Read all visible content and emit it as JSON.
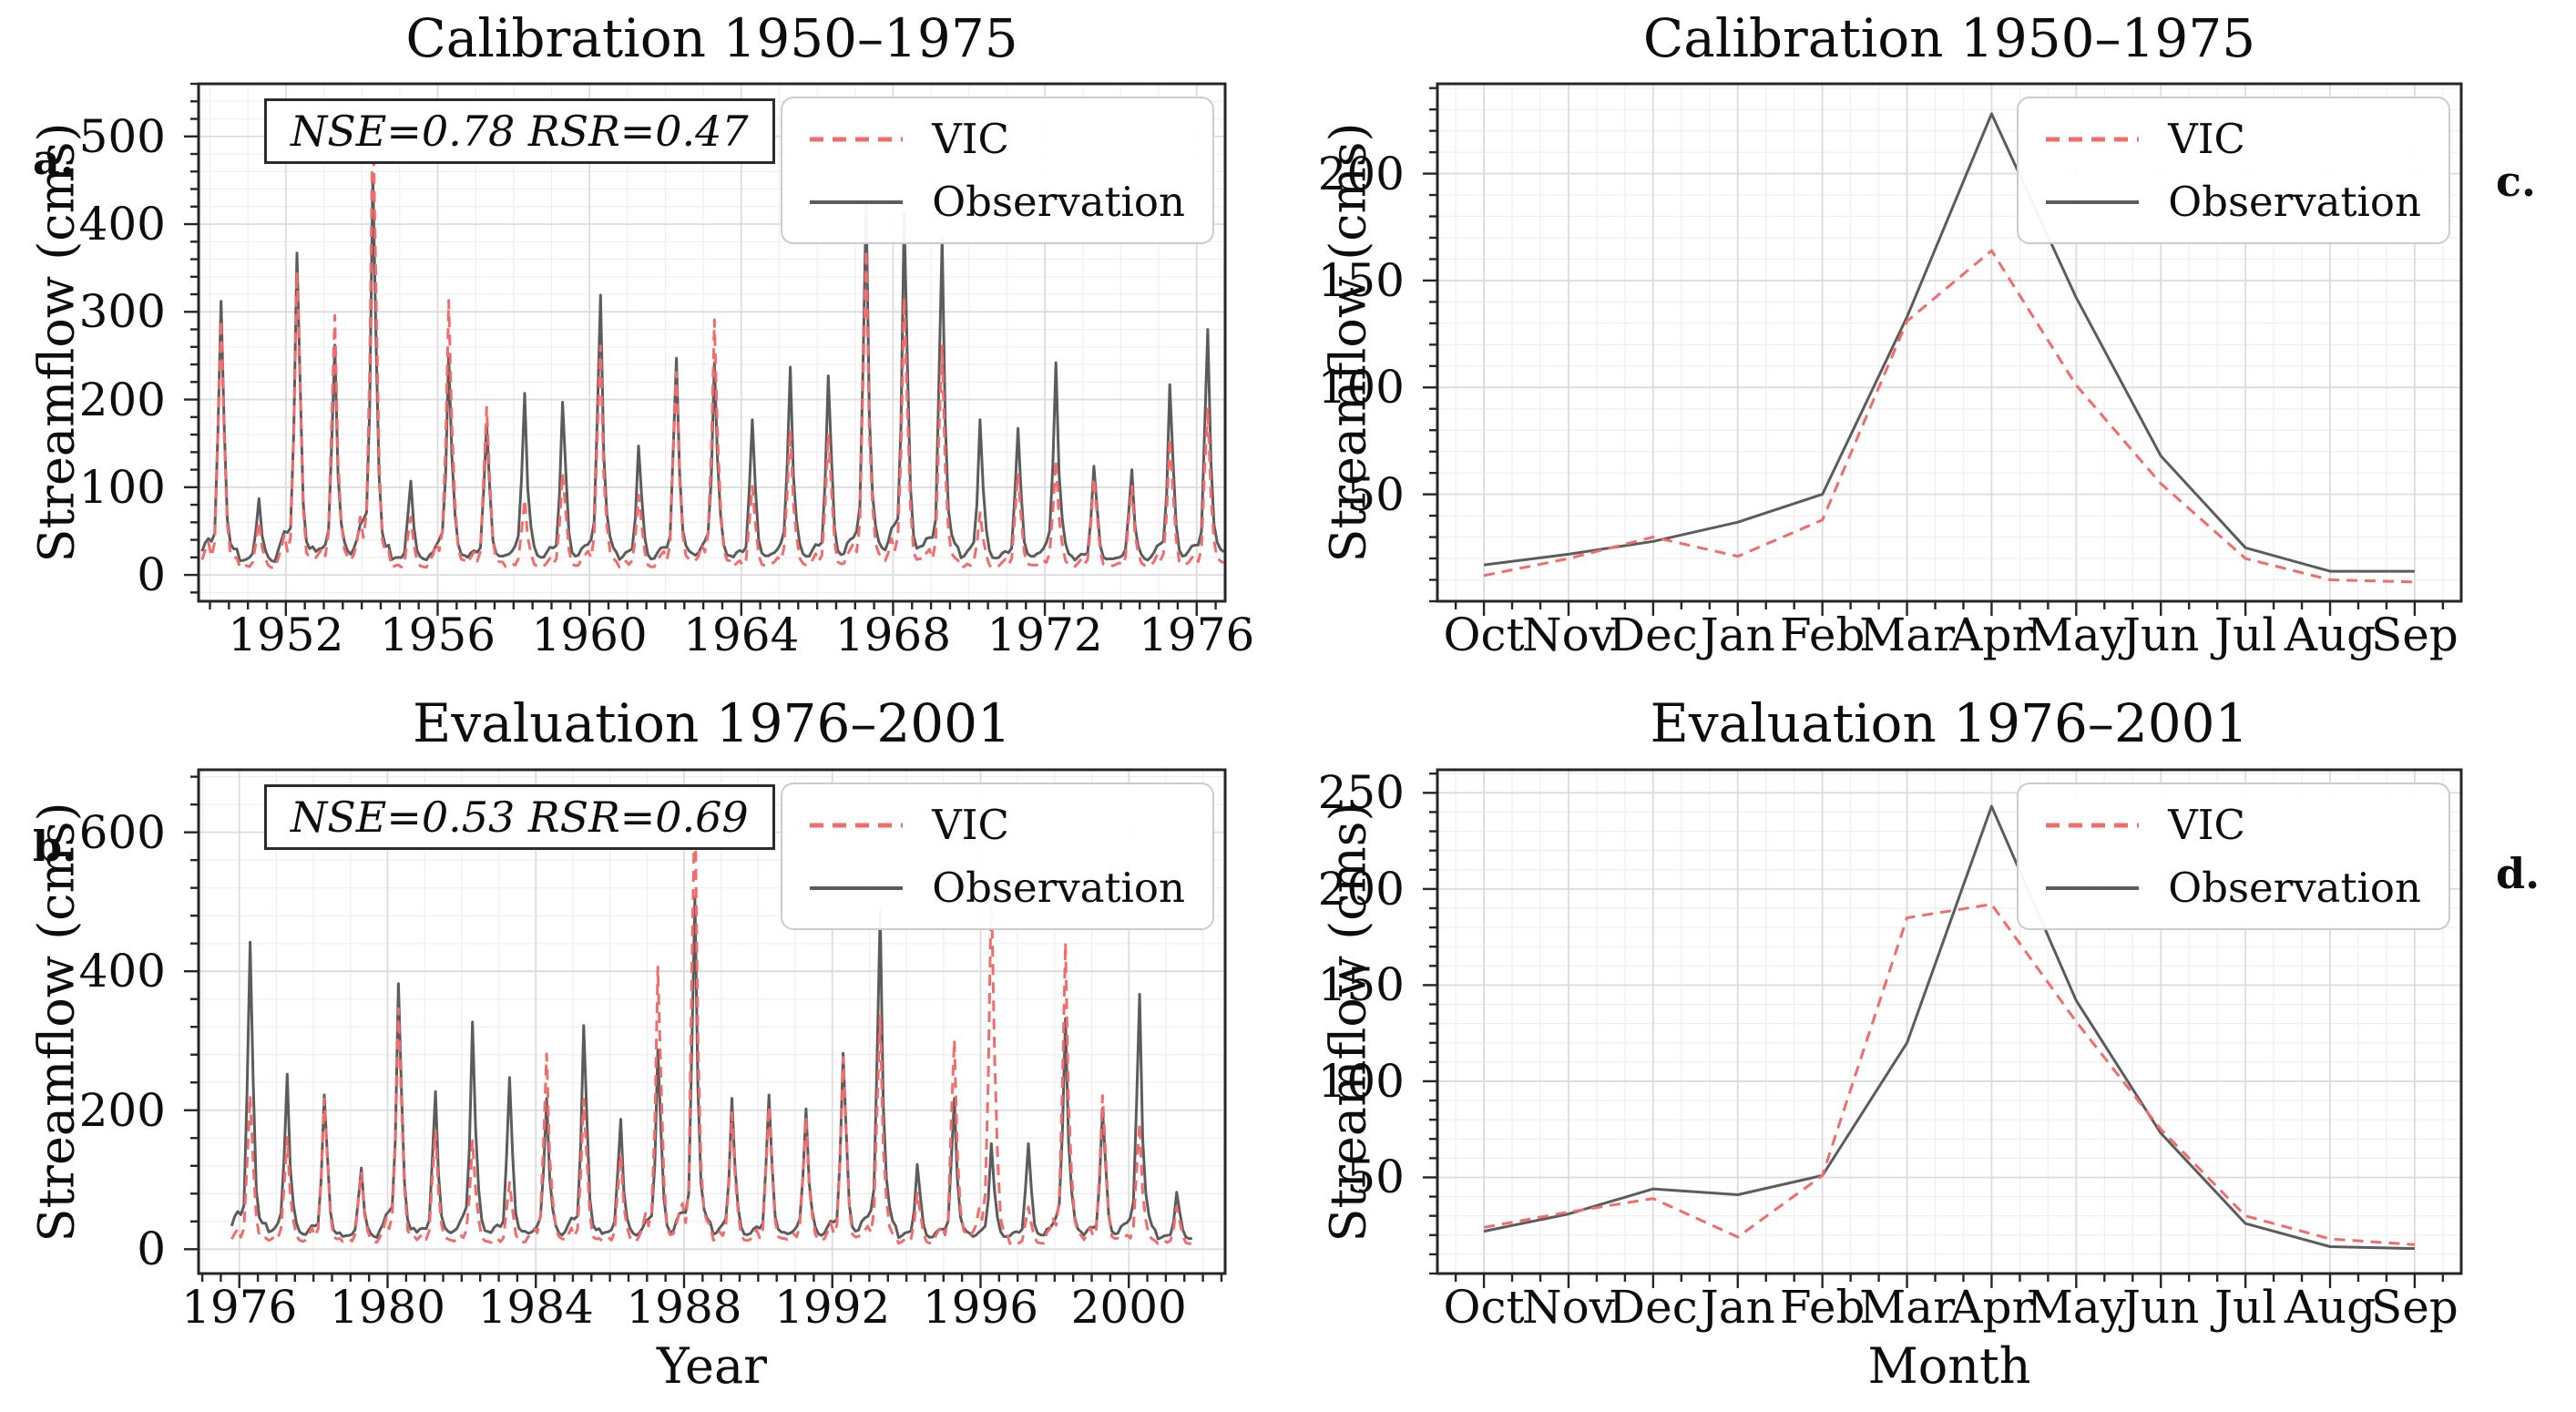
{
  "figure": {
    "background": "#ffffff",
    "ylabel_shared": "Streamflow (cms)",
    "legend": {
      "vic": "VIC",
      "obs": "Observation"
    },
    "colors": {
      "vic": "#f26c6c",
      "obs": "#5c5c5c",
      "grid_major": "#dcdcdc",
      "grid_minor": "#efefef",
      "spine": "#262626",
      "text": "#111111"
    }
  },
  "chart_data": [
    {
      "id": "a",
      "type": "line",
      "panel_label": "a.",
      "title": "Calibration 1950–1975",
      "stats": "NSE=0.78 RSR=0.47",
      "xlabel": "",
      "ylabel": "Streamflow (cms)",
      "legend": [
        "VIC",
        "Observation"
      ],
      "legend_position": "top-right",
      "x_mode": "years",
      "xlim": [
        1949.7,
        1976.75
      ],
      "ylim": [
        -30,
        560
      ],
      "xticks": [
        1952,
        1956,
        1960,
        1964,
        1968,
        1972,
        1976
      ],
      "yticks": [
        0,
        100,
        200,
        300,
        400,
        500
      ],
      "y_minor_step": 20,
      "series_model": "annual_peaks",
      "years": [
        1950,
        1951,
        1952,
        1953,
        1954,
        1955,
        1956,
        1957,
        1958,
        1959,
        1960,
        1961,
        1962,
        1963,
        1964,
        1965,
        1966,
        1967,
        1968,
        1969,
        1970,
        1971,
        1972,
        1973,
        1974,
        1975,
        1976
      ],
      "observation_peaks": [
        300,
        75,
        355,
        250,
        445,
        95,
        240,
        160,
        195,
        185,
        307,
        135,
        235,
        230,
        165,
        225,
        215,
        415,
        400,
        372,
        165,
        155,
        230,
        112,
        108,
        205,
        268
      ],
      "vic_peaks": [
        285,
        55,
        340,
        290,
        530,
        60,
        307,
        185,
        80,
        110,
        255,
        85,
        225,
        285,
        95,
        160,
        155,
        365,
        310,
        255,
        65,
        110,
        125,
        105,
        95,
        150,
        185
      ],
      "month_shape_observation": [
        0.05,
        0.07,
        0.09,
        0.1,
        0.14,
        0.48,
        1.0,
        0.5,
        0.2,
        0.09,
        0.055,
        0.05
      ],
      "month_shape_vic": [
        0.04,
        0.065,
        0.1,
        0.06,
        0.13,
        0.52,
        1.0,
        0.52,
        0.21,
        0.07,
        0.045,
        0.04
      ],
      "baseflow_observation": 12,
      "baseflow_vic": 6
    },
    {
      "id": "b",
      "type": "line",
      "panel_label": "b.",
      "title": "Evaluation 1976–2001",
      "stats": "NSE=0.53 RSR=0.69",
      "xlabel": "Year",
      "ylabel": "Streamflow (cms)",
      "legend": [
        "VIC",
        "Observation"
      ],
      "legend_position": "top-right",
      "x_mode": "years",
      "xlim": [
        1974.9,
        2002.6
      ],
      "ylim": [
        -35,
        690
      ],
      "xticks": [
        1976,
        1980,
        1984,
        1988,
        1992,
        1996,
        2000
      ],
      "yticks": [
        0,
        200,
        400,
        600
      ],
      "y_minor_step": 40,
      "series_model": "annual_peaks",
      "years": [
        1976,
        1977,
        1978,
        1979,
        1980,
        1981,
        1982,
        1983,
        1984,
        1985,
        1986,
        1987,
        1988,
        1989,
        1990,
        1991,
        1992,
        1993,
        1994,
        1995,
        1996,
        1997,
        1998,
        1999,
        2000,
        2001
      ],
      "observation_peaks": [
        430,
        240,
        210,
        105,
        370,
        215,
        315,
        235,
        205,
        310,
        175,
        275,
        495,
        205,
        210,
        190,
        270,
        475,
        110,
        205,
        140,
        140,
        320,
        190,
        355,
        70
      ],
      "vic_peaks": [
        215,
        155,
        210,
        105,
        340,
        165,
        150,
        90,
        275,
        210,
        130,
        400,
        650,
        190,
        200,
        185,
        270,
        330,
        75,
        295,
        520,
        55,
        435,
        215,
        175,
        55
      ],
      "month_shape_observation": [
        0.05,
        0.07,
        0.09,
        0.1,
        0.14,
        0.48,
        1.0,
        0.5,
        0.2,
        0.09,
        0.055,
        0.05
      ],
      "month_shape_vic": [
        0.04,
        0.065,
        0.1,
        0.06,
        0.13,
        0.52,
        1.0,
        0.52,
        0.21,
        0.07,
        0.045,
        0.04
      ],
      "baseflow_observation": 12,
      "baseflow_vic": 6
    },
    {
      "id": "c",
      "type": "line",
      "panel_label": "c.",
      "title": "Calibration 1950–1975",
      "stats": "",
      "xlabel": "",
      "ylabel": "Streamflow (cms)",
      "legend": [
        "VIC",
        "Observation"
      ],
      "legend_position": "top-right",
      "x_mode": "months",
      "categories": [
        "Oct",
        "Nov",
        "Dec",
        "Jan",
        "Feb",
        "Mar",
        "Apr",
        "May",
        "Jun",
        "Jul",
        "Aug",
        "Sep"
      ],
      "xlim": [
        -0.55,
        11.55
      ],
      "ylim": [
        0,
        242
      ],
      "yticks": [
        50,
        100,
        150,
        200
      ],
      "y_minor_step": 10,
      "series": [
        {
          "name": "VIC",
          "values": [
            12,
            20,
            30,
            21,
            38,
            131,
            164,
            101,
            55,
            20,
            10,
            9
          ]
        },
        {
          "name": "Observation",
          "values": [
            17,
            22,
            28,
            37,
            50,
            133,
            228,
            142,
            68,
            25,
            14,
            14
          ]
        }
      ]
    },
    {
      "id": "d",
      "type": "line",
      "panel_label": "d.",
      "title": "Evaluation 1976–2001",
      "stats": "",
      "xlabel": "Month",
      "ylabel": "Streamflow (cms)",
      "legend": [
        "VIC",
        "Observation"
      ],
      "legend_position": "top-right",
      "x_mode": "months",
      "categories": [
        "Oct",
        "Nov",
        "Dec",
        "Jan",
        "Feb",
        "Mar",
        "Apr",
        "May",
        "Jun",
        "Jul",
        "Aug",
        "Sep"
      ],
      "xlim": [
        -0.55,
        11.55
      ],
      "ylim": [
        0,
        262
      ],
      "yticks": [
        50,
        100,
        150,
        200,
        250
      ],
      "y_minor_step": 10,
      "series": [
        {
          "name": "VIC",
          "values": [
            24,
            32,
            39,
            19,
            51,
            185,
            192,
            131,
            75,
            30,
            18,
            15
          ]
        },
        {
          "name": "Observation",
          "values": [
            22,
            31,
            44,
            41,
            51,
            120,
            243,
            142,
            73,
            26,
            14,
            13
          ]
        }
      ]
    }
  ]
}
